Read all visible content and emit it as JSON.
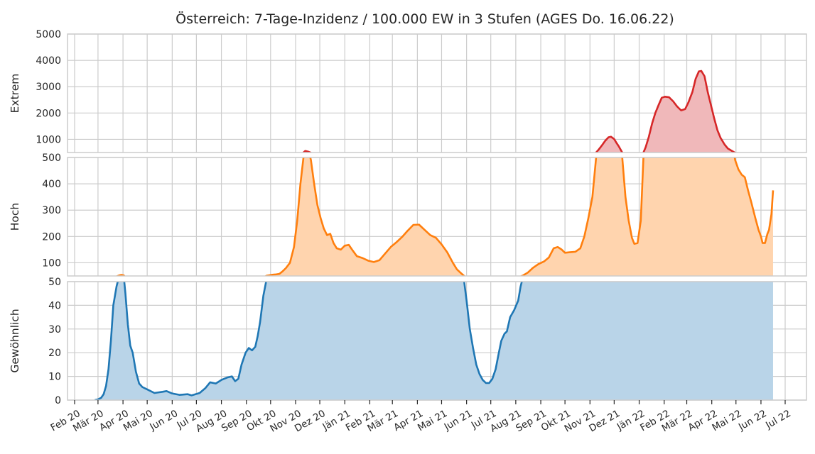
{
  "chart_data": {
    "type": "area",
    "title": "Österreich: 7-Tage-Inzidenz / 100.000 EW in 3 Stufen (AGES Do. 16.06.22)",
    "x_tick_labels": [
      "Feb 20",
      "Mär 20",
      "Apr 20",
      "Mai 20",
      "Jun 20",
      "Jul 20",
      "Aug 20",
      "Sep 20",
      "Okt 20",
      "Nov 20",
      "Dez 20",
      "Jän 21",
      "Feb 21",
      "Mär 21",
      "Apr 21",
      "Mai 21",
      "Jun 21",
      "Jul 21",
      "Aug 21",
      "Sep 21",
      "Okt 21",
      "Nov 21",
      "Dez 21",
      "Jän 22",
      "Feb 22",
      "Mär 22",
      "Apr 22",
      "Mai 22",
      "Jun 22",
      "Jul 22"
    ],
    "panels": [
      {
        "name": "extreme",
        "ylabel": "Extrem",
        "ylim": [
          500,
          5000
        ],
        "yticks": [
          1000,
          2000,
          3000,
          4000,
          5000
        ],
        "color": "#d62728",
        "fill": "#f0b8ba"
      },
      {
        "name": "high",
        "ylabel": "Hoch",
        "ylim": [
          50,
          500
        ],
        "yticks": [
          100,
          200,
          300,
          400,
          500
        ],
        "color": "#ff7f0e",
        "fill": "#ffd4ae"
      },
      {
        "name": "normal",
        "ylabel": "Gewöhnlich",
        "ylim": [
          0,
          50
        ],
        "yticks": [
          0,
          10,
          20,
          30,
          40,
          50
        ],
        "color": "#1f77b4",
        "fill": "#b9d4e8"
      }
    ],
    "grid": true,
    "series": [
      {
        "values_by_month": [
          [
            "2020-02-26",
            0
          ],
          [
            "2020-03-01",
            0.3
          ],
          [
            "2020-03-05",
            1
          ],
          [
            "2020-03-08",
            2.5
          ],
          [
            "2020-03-11",
            6
          ],
          [
            "2020-03-14",
            13
          ],
          [
            "2020-03-17",
            25
          ],
          [
            "2020-03-20",
            40
          ],
          [
            "2020-03-24",
            48
          ],
          [
            "2020-03-27",
            52
          ],
          [
            "2020-03-30",
            54
          ],
          [
            "2020-04-02",
            52
          ],
          [
            "2020-04-04",
            45
          ],
          [
            "2020-04-07",
            32
          ],
          [
            "2020-04-10",
            23
          ],
          [
            "2020-04-13",
            20
          ],
          [
            "2020-04-17",
            12
          ],
          [
            "2020-04-21",
            7
          ],
          [
            "2020-04-25",
            5.5
          ],
          [
            "2020-05-01",
            4.5
          ],
          [
            "2020-05-10",
            3
          ],
          [
            "2020-05-20",
            3.5
          ],
          [
            "2020-05-25",
            3.8
          ],
          [
            "2020-06-01",
            2.8
          ],
          [
            "2020-06-10",
            2.2
          ],
          [
            "2020-06-20",
            2.5
          ],
          [
            "2020-06-25",
            2
          ],
          [
            "2020-07-05",
            3
          ],
          [
            "2020-07-12",
            5
          ],
          [
            "2020-07-18",
            7.5
          ],
          [
            "2020-07-25",
            7
          ],
          [
            "2020-08-01",
            8.5
          ],
          [
            "2020-08-08",
            9.5
          ],
          [
            "2020-08-14",
            10
          ],
          [
            "2020-08-18",
            8
          ],
          [
            "2020-08-22",
            9
          ],
          [
            "2020-08-26",
            15
          ],
          [
            "2020-08-31",
            20
          ],
          [
            "2020-09-04",
            22
          ],
          [
            "2020-09-08",
            21
          ],
          [
            "2020-09-12",
            22.5
          ],
          [
            "2020-09-15",
            27
          ],
          [
            "2020-09-18",
            33
          ],
          [
            "2020-09-22",
            44
          ],
          [
            "2020-09-26",
            51
          ],
          [
            "2020-09-30",
            53
          ],
          [
            "2020-10-04",
            55
          ],
          [
            "2020-10-08",
            56
          ],
          [
            "2020-10-12",
            58
          ],
          [
            "2020-10-16",
            68
          ],
          [
            "2020-10-20",
            80
          ],
          [
            "2020-10-25",
            100
          ],
          [
            "2020-10-30",
            160
          ],
          [
            "2020-11-03",
            260
          ],
          [
            "2020-11-07",
            400
          ],
          [
            "2020-11-10",
            480
          ],
          [
            "2020-11-13",
            560
          ],
          [
            "2020-11-17",
            530
          ],
          [
            "2020-11-20",
            490
          ],
          [
            "2020-11-24",
            400
          ],
          [
            "2020-11-28",
            320
          ],
          [
            "2020-12-02",
            270
          ],
          [
            "2020-12-06",
            230
          ],
          [
            "2020-12-10",
            205
          ],
          [
            "2020-12-14",
            210
          ],
          [
            "2020-12-18",
            175
          ],
          [
            "2020-12-22",
            155
          ],
          [
            "2020-12-27",
            150
          ],
          [
            "2021-01-01",
            165
          ],
          [
            "2021-01-06",
            168
          ],
          [
            "2021-01-10",
            150
          ],
          [
            "2021-01-16",
            125
          ],
          [
            "2021-01-23",
            118
          ],
          [
            "2021-01-30",
            108
          ],
          [
            "2021-02-06",
            103
          ],
          [
            "2021-02-13",
            110
          ],
          [
            "2021-02-20",
            135
          ],
          [
            "2021-02-27",
            160
          ],
          [
            "2021-03-06",
            178
          ],
          [
            "2021-03-13",
            198
          ],
          [
            "2021-03-20",
            222
          ],
          [
            "2021-03-27",
            244
          ],
          [
            "2021-04-03",
            245
          ],
          [
            "2021-04-10",
            225
          ],
          [
            "2021-04-17",
            205
          ],
          [
            "2021-04-24",
            195
          ],
          [
            "2021-05-01",
            170
          ],
          [
            "2021-05-08",
            140
          ],
          [
            "2021-05-15",
            100
          ],
          [
            "2021-05-20",
            75
          ],
          [
            "2021-05-26",
            58
          ],
          [
            "2021-06-01",
            42
          ],
          [
            "2021-06-05",
            30
          ],
          [
            "2021-06-09",
            22
          ],
          [
            "2021-06-13",
            15
          ],
          [
            "2021-06-17",
            11
          ],
          [
            "2021-06-21",
            8.5
          ],
          [
            "2021-06-25",
            7.2
          ],
          [
            "2021-06-29",
            7.2
          ],
          [
            "2021-07-03",
            9
          ],
          [
            "2021-07-07",
            13
          ],
          [
            "2021-07-11",
            20
          ],
          [
            "2021-07-14",
            25
          ],
          [
            "2021-07-18",
            28
          ],
          [
            "2021-07-21",
            29
          ],
          [
            "2021-07-25",
            35
          ],
          [
            "2021-07-30",
            38
          ],
          [
            "2021-08-04",
            42
          ],
          [
            "2021-08-07",
            48
          ],
          [
            "2021-08-10",
            52
          ],
          [
            "2021-08-16",
            63
          ],
          [
            "2021-08-22",
            80
          ],
          [
            "2021-08-29",
            95
          ],
          [
            "2021-09-05",
            105
          ],
          [
            "2021-09-11",
            120
          ],
          [
            "2021-09-17",
            155
          ],
          [
            "2021-09-22",
            160
          ],
          [
            "2021-09-27",
            150
          ],
          [
            "2021-10-01",
            138
          ],
          [
            "2021-10-07",
            140
          ],
          [
            "2021-10-14",
            142
          ],
          [
            "2021-10-20",
            155
          ],
          [
            "2021-10-25",
            200
          ],
          [
            "2021-10-30",
            270
          ],
          [
            "2021-11-04",
            350
          ],
          [
            "2021-11-08",
            480
          ],
          [
            "2021-11-12",
            620
          ],
          [
            "2021-11-16",
            780
          ],
          [
            "2021-11-20",
            950
          ],
          [
            "2021-11-24",
            1080
          ],
          [
            "2021-11-27",
            1100
          ],
          [
            "2021-12-01",
            1010
          ],
          [
            "2021-12-04",
            860
          ],
          [
            "2021-12-07",
            720
          ],
          [
            "2021-12-11",
            500
          ],
          [
            "2021-12-15",
            350
          ],
          [
            "2021-12-19",
            260
          ],
          [
            "2021-12-23",
            195
          ],
          [
            "2021-12-26",
            172
          ],
          [
            "2021-12-30",
            175
          ],
          [
            "2022-01-03",
            260
          ],
          [
            "2022-01-06",
            480
          ],
          [
            "2022-01-09",
            700
          ],
          [
            "2022-01-13",
            1100
          ],
          [
            "2022-01-17",
            1600
          ],
          [
            "2022-01-21",
            2000
          ],
          [
            "2022-01-25",
            2300
          ],
          [
            "2022-01-29",
            2580
          ],
          [
            "2022-02-02",
            2620
          ],
          [
            "2022-02-07",
            2600
          ],
          [
            "2022-02-12",
            2450
          ],
          [
            "2022-02-17",
            2250
          ],
          [
            "2022-02-22",
            2100
          ],
          [
            "2022-02-27",
            2150
          ],
          [
            "2022-03-03",
            2400
          ],
          [
            "2022-03-08",
            2800
          ],
          [
            "2022-03-12",
            3300
          ],
          [
            "2022-03-16",
            3580
          ],
          [
            "2022-03-19",
            3600
          ],
          [
            "2022-03-23",
            3400
          ],
          [
            "2022-03-27",
            2800
          ],
          [
            "2022-03-31",
            2300
          ],
          [
            "2022-04-04",
            1800
          ],
          [
            "2022-04-08",
            1350
          ],
          [
            "2022-04-12",
            1050
          ],
          [
            "2022-04-17",
            800
          ],
          [
            "2022-04-21",
            650
          ],
          [
            "2022-04-26",
            560
          ],
          [
            "2022-04-30",
            490
          ],
          [
            "2022-05-04",
            455
          ],
          [
            "2022-05-08",
            435
          ],
          [
            "2022-05-12",
            425
          ],
          [
            "2022-05-16",
            375
          ],
          [
            "2022-05-20",
            330
          ],
          [
            "2022-05-25",
            270
          ],
          [
            "2022-05-29",
            225
          ],
          [
            "2022-06-01",
            200
          ],
          [
            "2022-06-03",
            175
          ],
          [
            "2022-06-06",
            175
          ],
          [
            "2022-06-09",
            210
          ],
          [
            "2022-06-11",
            225
          ],
          [
            "2022-06-14",
            285
          ],
          [
            "2022-06-16",
            375
          ]
        ]
      }
    ]
  }
}
